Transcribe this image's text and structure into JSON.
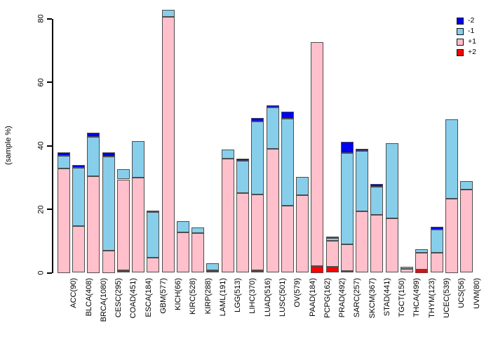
{
  "figure": {
    "background": "#ffffff"
  },
  "chart_data": {
    "type": "bar",
    "stacked": true,
    "title": "",
    "xlabel": "",
    "ylabel": "(sample %)",
    "ylim": [
      0,
      80
    ],
    "yticks": [
      "0",
      "20",
      "40",
      "60",
      "80"
    ],
    "grid": false,
    "bar_border_color": "#4d4d4d",
    "stack_order_bottom_to_top": [
      "+2",
      "+1",
      "-1",
      "-2"
    ],
    "legend": {
      "position": "top-right",
      "entries": [
        {
          "label": "-2",
          "color": "#0000EE"
        },
        {
          "label": "-1",
          "color": "#87CEEB"
        },
        {
          "label": "+1",
          "color": "#FFC0CB"
        },
        {
          "label": "+2",
          "color": "#FF0000"
        }
      ]
    },
    "categories": [
      "ACC(90)",
      "BLCA(408)",
      "BRCA(1080)",
      "CESC(295)",
      "COAD(451)",
      "ESCA(184)",
      "GBM(577)",
      "KICH(66)",
      "KIRC(528)",
      "KIRP(288)",
      "LAML(191)",
      "LGG(513)",
      "LIHC(370)",
      "LUAD(516)",
      "LUSC(501)",
      "OV(579)",
      "PAAD(184)",
      "PCPG(162)",
      "PRAD(492)",
      "SARC(257)",
      "SKCM(367)",
      "STAD(441)",
      "TGCT(150)",
      "THCA(499)",
      "THYM(123)",
      "UCEC(539)",
      "UCS(56)",
      "UVM(80)"
    ],
    "series": [
      {
        "name": "-2",
        "color": "#0000EE",
        "values": [
          1.3,
          0.9,
          1.5,
          1.5,
          0,
          0,
          0.5,
          0,
          0,
          0,
          0,
          0,
          0.7,
          1.2,
          0.7,
          2.4,
          0,
          0,
          0.5,
          3.5,
          0.8,
          0.8,
          0,
          0,
          0,
          1.0,
          0,
          0
        ]
      },
      {
        "name": "-1",
        "color": "#87CEEB",
        "values": [
          3.8,
          18.4,
          12.4,
          29.6,
          3.1,
          11.5,
          14.4,
          2.1,
          3.5,
          1.8,
          2.2,
          2.8,
          10.3,
          23.0,
          13.1,
          27.3,
          5.7,
          0,
          0.8,
          28.7,
          19.0,
          8.8,
          23.6,
          0.6,
          1.1,
          7.2,
          25.1,
          2.7
        ]
      },
      {
        "name": "+1",
        "color": "#FFC0CB",
        "values": [
          32.9,
          14.7,
          30.3,
          6.9,
          28.6,
          30.0,
          4.7,
          80.6,
          12.8,
          12.4,
          0.2,
          35.9,
          25.0,
          23.9,
          39.0,
          21.1,
          24.5,
          70.6,
          8.3,
          8.5,
          19.3,
          18.3,
          17.2,
          1.2,
          5.3,
          6.3,
          23.3,
          26.2
        ]
      },
      {
        "name": "+2",
        "color": "#FF0000",
        "values": [
          0,
          0,
          0,
          0,
          0.8,
          0,
          0,
          0,
          0,
          0,
          0.6,
          0,
          0,
          0.7,
          0,
          0,
          0,
          2.1,
          1.8,
          0.5,
          0,
          0,
          0,
          0,
          1.0,
          0,
          0,
          0
        ]
      }
    ]
  }
}
